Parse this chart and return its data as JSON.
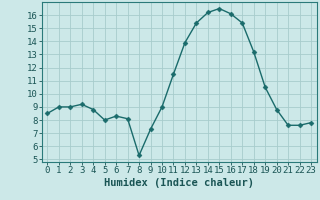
{
  "x": [
    0,
    1,
    2,
    3,
    4,
    5,
    6,
    7,
    8,
    9,
    10,
    11,
    12,
    13,
    14,
    15,
    16,
    17,
    18,
    19,
    20,
    21,
    22,
    23
  ],
  "y": [
    8.5,
    9.0,
    9.0,
    9.2,
    8.8,
    8.0,
    8.3,
    8.1,
    5.3,
    7.3,
    9.0,
    11.5,
    13.9,
    15.4,
    16.2,
    16.5,
    16.1,
    15.4,
    13.2,
    10.5,
    8.8,
    7.6,
    7.6,
    7.8
  ],
  "ylim": [
    4.8,
    17.0
  ],
  "yticks": [
    5,
    6,
    7,
    8,
    9,
    10,
    11,
    12,
    13,
    14,
    15,
    16
  ],
  "xticks": [
    0,
    1,
    2,
    3,
    4,
    5,
    6,
    7,
    8,
    9,
    10,
    11,
    12,
    13,
    14,
    15,
    16,
    17,
    18,
    19,
    20,
    21,
    22,
    23
  ],
  "xlabel": "Humidex (Indice chaleur)",
  "line_color": "#1a6b6b",
  "marker": "D",
  "marker_size": 2.5,
  "bg_color": "#cce8e8",
  "grid_color": "#a8cccc",
  "axis_color": "#2a7a7a",
  "tick_color": "#1a5555",
  "xlabel_color": "#1a5555",
  "xlabel_fontsize": 7.5,
  "tick_fontsize": 6.5,
  "linewidth": 1.0
}
